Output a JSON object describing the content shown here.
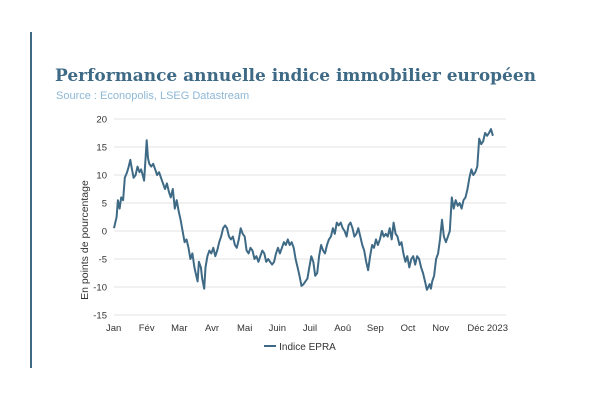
{
  "title": "Performance annuelle indice immobilier européen",
  "subtitle": "Source : Econopolis, LSEG Datastream",
  "colors": {
    "accent": "#3f6a86",
    "subtitle": "#8fb8d6",
    "series": "#3f6a86",
    "grid": "#e3e3e3"
  },
  "chart_data": {
    "type": "line",
    "title": "Performance annuelle indice immobilier européen",
    "subtitle": "Source : Econopolis, LSEG Datastream",
    "xlabel": "",
    "ylabel": "En points de pourcentage",
    "xlim": [
      0,
      12
    ],
    "ylim": [
      -15,
      20
    ],
    "yticks": [
      -15,
      -10,
      -5,
      0,
      5,
      10,
      15,
      20
    ],
    "x_ticks": [
      {
        "x": 0,
        "label": "Jan"
      },
      {
        "x": 1,
        "label": "Fév"
      },
      {
        "x": 2,
        "label": "Mar"
      },
      {
        "x": 3,
        "label": "Avr"
      },
      {
        "x": 4,
        "label": "Mai"
      },
      {
        "x": 5,
        "label": "Juin"
      },
      {
        "x": 6,
        "label": "Juil"
      },
      {
        "x": 7,
        "label": "Aoû"
      },
      {
        "x": 8,
        "label": "Sep"
      },
      {
        "x": 9,
        "label": "Oct"
      },
      {
        "x": 10,
        "label": "Nov"
      },
      {
        "x": 11,
        "label": "Déc 2023"
      }
    ],
    "grid": true,
    "legend_position": "bottom",
    "series": [
      {
        "name": "Indice EPRA",
        "color": "#3f6a86",
        "points": [
          [
            0.0,
            0.5
          ],
          [
            0.08,
            2.5
          ],
          [
            0.12,
            5.5
          ],
          [
            0.17,
            4.0
          ],
          [
            0.22,
            6.0
          ],
          [
            0.28,
            5.5
          ],
          [
            0.33,
            9.5
          ],
          [
            0.4,
            10.5
          ],
          [
            0.45,
            11.5
          ],
          [
            0.5,
            12.7
          ],
          [
            0.55,
            11.0
          ],
          [
            0.6,
            9.5
          ],
          [
            0.66,
            10.0
          ],
          [
            0.72,
            11.5
          ],
          [
            0.78,
            10.5
          ],
          [
            0.83,
            11.0
          ],
          [
            0.88,
            10.0
          ],
          [
            0.92,
            9.0
          ],
          [
            0.96,
            12.5
          ],
          [
            1.0,
            16.2
          ],
          [
            1.04,
            13.0
          ],
          [
            1.08,
            12.0
          ],
          [
            1.14,
            11.5
          ],
          [
            1.2,
            12.0
          ],
          [
            1.26,
            11.0
          ],
          [
            1.32,
            10.0
          ],
          [
            1.38,
            10.5
          ],
          [
            1.44,
            9.5
          ],
          [
            1.5,
            8.5
          ],
          [
            1.56,
            7.5
          ],
          [
            1.62,
            8.5
          ],
          [
            1.68,
            7.0
          ],
          [
            1.74,
            6.0
          ],
          [
            1.8,
            7.5
          ],
          [
            1.86,
            4.0
          ],
          [
            1.92,
            5.5
          ],
          [
            1.98,
            3.5
          ],
          [
            2.04,
            2.0
          ],
          [
            2.1,
            0.0
          ],
          [
            2.16,
            -2.0
          ],
          [
            2.22,
            -1.5
          ],
          [
            2.28,
            -3.0
          ],
          [
            2.34,
            -5.0
          ],
          [
            2.4,
            -4.0
          ],
          [
            2.46,
            -6.5
          ],
          [
            2.52,
            -8.0
          ],
          [
            2.56,
            -9.0
          ],
          [
            2.6,
            -5.5
          ],
          [
            2.66,
            -6.5
          ],
          [
            2.7,
            -8.5
          ],
          [
            2.76,
            -10.3
          ],
          [
            2.8,
            -6.5
          ],
          [
            2.86,
            -4.5
          ],
          [
            2.92,
            -3.5
          ],
          [
            2.98,
            -4.0
          ],
          [
            3.04,
            -3.0
          ],
          [
            3.1,
            -4.5
          ],
          [
            3.16,
            -3.5
          ],
          [
            3.22,
            -2.0
          ],
          [
            3.28,
            -1.0
          ],
          [
            3.34,
            0.5
          ],
          [
            3.4,
            1.0
          ],
          [
            3.46,
            0.5
          ],
          [
            3.52,
            -1.0
          ],
          [
            3.58,
            -1.5
          ],
          [
            3.64,
            -1.0
          ],
          [
            3.7,
            -2.5
          ],
          [
            3.76,
            -3.0
          ],
          [
            3.82,
            -1.5
          ],
          [
            3.88,
            0.5
          ],
          [
            3.94,
            -0.5
          ],
          [
            4.0,
            -1.0
          ],
          [
            4.06,
            -3.5
          ],
          [
            4.12,
            -4.0
          ],
          [
            4.18,
            -3.0
          ],
          [
            4.24,
            -3.5
          ],
          [
            4.3,
            -5.0
          ],
          [
            4.36,
            -4.5
          ],
          [
            4.42,
            -5.5
          ],
          [
            4.48,
            -4.5
          ],
          [
            4.54,
            -3.5
          ],
          [
            4.6,
            -4.0
          ],
          [
            4.66,
            -5.5
          ],
          [
            4.72,
            -5.0
          ],
          [
            4.78,
            -5.5
          ],
          [
            4.84,
            -6.0
          ],
          [
            4.9,
            -5.5
          ],
          [
            4.96,
            -4.0
          ],
          [
            5.02,
            -3.0
          ],
          [
            5.08,
            -4.0
          ],
          [
            5.14,
            -3.0
          ],
          [
            5.2,
            -2.0
          ],
          [
            5.26,
            -2.5
          ],
          [
            5.32,
            -1.5
          ],
          [
            5.38,
            -2.5
          ],
          [
            5.44,
            -2.0
          ],
          [
            5.5,
            -3.0
          ],
          [
            5.56,
            -5.0
          ],
          [
            5.62,
            -6.5
          ],
          [
            5.68,
            -8.0
          ],
          [
            5.74,
            -9.8
          ],
          [
            5.8,
            -9.5
          ],
          [
            5.86,
            -9.0
          ],
          [
            5.92,
            -8.5
          ],
          [
            5.98,
            -6.5
          ],
          [
            6.04,
            -4.5
          ],
          [
            6.1,
            -5.5
          ],
          [
            6.16,
            -8.0
          ],
          [
            6.22,
            -7.5
          ],
          [
            6.28,
            -4.5
          ],
          [
            6.34,
            -2.5
          ],
          [
            6.4,
            -3.5
          ],
          [
            6.46,
            -4.0
          ],
          [
            6.52,
            -2.5
          ],
          [
            6.58,
            -1.5
          ],
          [
            6.64,
            -1.0
          ],
          [
            6.7,
            0.5
          ],
          [
            6.76,
            -0.5
          ],
          [
            6.82,
            1.5
          ],
          [
            6.88,
            1.0
          ],
          [
            6.94,
            1.5
          ],
          [
            7.0,
            0.5
          ],
          [
            7.06,
            0.0
          ],
          [
            7.12,
            -1.0
          ],
          [
            7.18,
            1.0
          ],
          [
            7.24,
            1.5
          ],
          [
            7.3,
            0.5
          ],
          [
            7.36,
            -1.0
          ],
          [
            7.42,
            -0.5
          ],
          [
            7.48,
            0.5
          ],
          [
            7.54,
            -1.0
          ],
          [
            7.6,
            -2.5
          ],
          [
            7.66,
            -3.5
          ],
          [
            7.72,
            -5.5
          ],
          [
            7.78,
            -7.0
          ],
          [
            7.84,
            -4.5
          ],
          [
            7.9,
            -2.5
          ],
          [
            7.96,
            -3.0
          ],
          [
            8.02,
            -1.5
          ],
          [
            8.08,
            -2.5
          ],
          [
            8.14,
            -1.5
          ],
          [
            8.2,
            0.0
          ],
          [
            8.26,
            -1.0
          ],
          [
            8.32,
            -0.5
          ],
          [
            8.38,
            -1.0
          ],
          [
            8.44,
            0.5
          ],
          [
            8.5,
            -1.5
          ],
          [
            8.56,
            1.5
          ],
          [
            8.62,
            -0.5
          ],
          [
            8.68,
            -1.0
          ],
          [
            8.74,
            -2.5
          ],
          [
            8.8,
            -2.0
          ],
          [
            8.86,
            -4.0
          ],
          [
            8.92,
            -5.5
          ],
          [
            8.98,
            -4.5
          ],
          [
            9.04,
            -6.5
          ],
          [
            9.1,
            -5.0
          ],
          [
            9.16,
            -4.5
          ],
          [
            9.22,
            -6.0
          ],
          [
            9.28,
            -4.5
          ],
          [
            9.34,
            -5.0
          ],
          [
            9.4,
            -6.5
          ],
          [
            9.46,
            -7.5
          ],
          [
            9.52,
            -9.0
          ],
          [
            9.58,
            -10.5
          ],
          [
            9.62,
            -10.0
          ],
          [
            9.66,
            -9.5
          ],
          [
            9.7,
            -10.3
          ],
          [
            9.74,
            -9.0
          ],
          [
            9.8,
            -8.0
          ],
          [
            9.86,
            -5.0
          ],
          [
            9.92,
            -4.0
          ],
          [
            9.98,
            -1.5
          ],
          [
            10.04,
            2.0
          ],
          [
            10.1,
            -1.0
          ],
          [
            10.16,
            -2.0
          ],
          [
            10.22,
            -1.0
          ],
          [
            10.28,
            0.0
          ],
          [
            10.34,
            6.0
          ],
          [
            10.4,
            4.0
          ],
          [
            10.46,
            5.5
          ],
          [
            10.52,
            4.5
          ],
          [
            10.58,
            5.0
          ],
          [
            10.64,
            4.0
          ],
          [
            10.7,
            5.5
          ],
          [
            10.76,
            6.0
          ],
          [
            10.82,
            7.5
          ],
          [
            10.88,
            9.5
          ],
          [
            10.94,
            11.0
          ],
          [
            11.0,
            10.0
          ],
          [
            11.06,
            10.5
          ],
          [
            11.12,
            11.5
          ],
          [
            11.18,
            16.5
          ],
          [
            11.24,
            15.5
          ],
          [
            11.3,
            16.0
          ],
          [
            11.36,
            17.5
          ],
          [
            11.42,
            17.0
          ],
          [
            11.48,
            17.5
          ],
          [
            11.54,
            18.2
          ],
          [
            11.6,
            17.0
          ]
        ]
      }
    ]
  }
}
